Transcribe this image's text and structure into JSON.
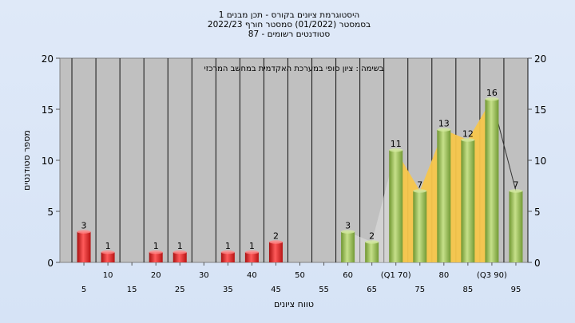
{
  "title_lines": [
    "היסטוגרמת ציונים בקורס - תכן מבנים 1",
    "בסמסטר  (01/2022)  סמסטר חורף 2022/23",
    "סטודנטים רשומים - 87"
  ],
  "colors": {
    "red": "#e02424",
    "green": "#8fb84a",
    "quartile_band": "#f7c64b",
    "plot_bg": "#c0c0c0",
    "page_bg": "#d9e5f7"
  },
  "chart_data": {
    "type": "bar",
    "annotation": "בשימה : ציון סופי במערכת האקדמית במחשב המרכזי",
    "xlabel": "טווח ציונים",
    "ylabel": "מספר סטודנטים",
    "ylim": [
      0,
      20
    ],
    "yticks": [
      0,
      5,
      10,
      15,
      20
    ],
    "grid": "vertical",
    "categories": [
      "5",
      "10",
      "15",
      "20",
      "25",
      "30",
      "35",
      "40",
      "45",
      "50",
      "55",
      "60",
      "65",
      "(Q1 70)",
      "75",
      "80",
      "85",
      "(Q3 90)",
      "95"
    ],
    "series": [
      {
        "values": [
          3,
          1,
          0,
          1,
          1,
          0,
          1,
          1,
          2,
          0,
          0,
          3,
          2,
          11,
          7,
          13,
          12,
          16,
          7
        ],
        "colors": [
          "red",
          "red",
          "red",
          "red",
          "red",
          "red",
          "red",
          "red",
          "red",
          "red",
          "red",
          "green",
          "green",
          "green",
          "green",
          "green",
          "green",
          "green",
          "green"
        ]
      }
    ],
    "quartile_band": {
      "from": "(Q1 70)",
      "to": "(Q3 90)"
    }
  }
}
